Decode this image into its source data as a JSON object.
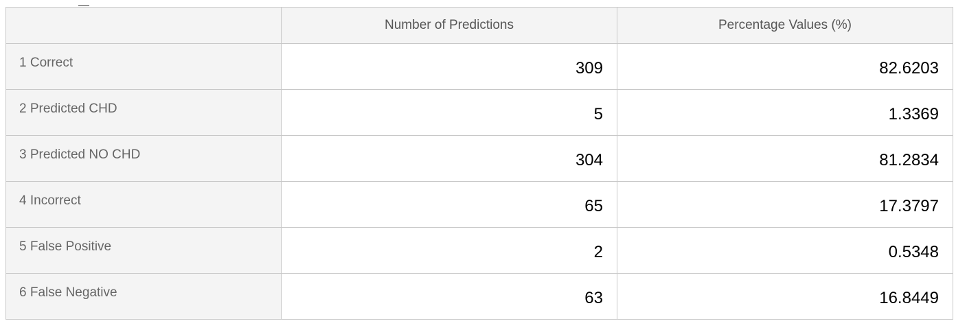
{
  "table": {
    "columns": [
      "",
      "Number of Predictions",
      "Percentage Values (%)"
    ],
    "rows": [
      {
        "label": "1 Correct",
        "count": "309",
        "percent": "82.6203"
      },
      {
        "label": "2 Predicted CHD",
        "count": "5",
        "percent": "1.3369"
      },
      {
        "label": "3 Predicted NO CHD",
        "count": "304",
        "percent": "81.2834"
      },
      {
        "label": "4 Incorrect",
        "count": "65",
        "percent": "17.3797"
      },
      {
        "label": "5 False Positive",
        "count": "2",
        "percent": "0.5348"
      },
      {
        "label": "6 False Negative",
        "count": "63",
        "percent": "16.8449"
      }
    ]
  },
  "colors": {
    "header_bg": "#f4f4f4",
    "border": "#c8c8c8",
    "label_text": "#666666",
    "value_text": "#000000"
  }
}
